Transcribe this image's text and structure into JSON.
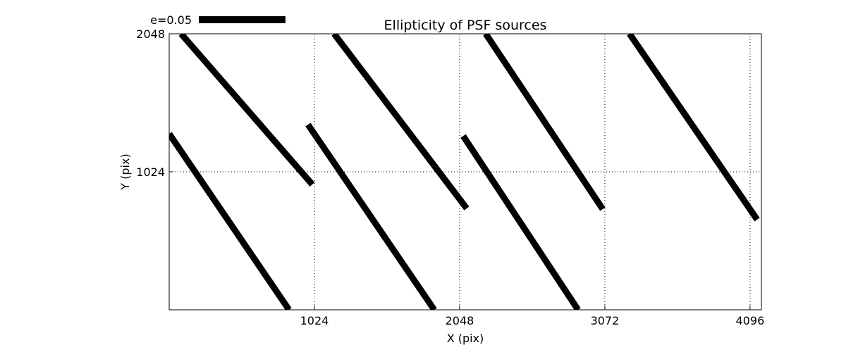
{
  "chart_data": {
    "type": "whisker",
    "title": "Ellipticity of PSF sources",
    "x_label": "X (pix)",
    "y_label": "Y (pix)",
    "xlim": [
      0,
      4176
    ],
    "ylim": [
      0,
      2048
    ],
    "xticks": [
      1024,
      2048,
      3072,
      4096
    ],
    "yticks": [
      1024,
      2048
    ],
    "grid": true,
    "color": "#000000",
    "key": {
      "label": "e=0.05",
      "length": 611
    },
    "segments": [
      {
        "x": [
          84,
          1009
        ],
        "y": [
          2048,
          930
        ]
      },
      {
        "x": [
          0,
          845
        ],
        "y": [
          1306,
          0
        ]
      },
      {
        "x": [
          1163,
          2098
        ],
        "y": [
          2048,
          752
        ]
      },
      {
        "x": [
          979,
          1869
        ],
        "y": [
          1374,
          0
        ]
      },
      {
        "x": [
          2232,
          3057
        ],
        "y": [
          2048,
          747
        ]
      },
      {
        "x": [
          2073,
          2883
        ],
        "y": [
          1290,
          0
        ]
      },
      {
        "x": [
          3246,
          4146
        ],
        "y": [
          2048,
          669
        ]
      }
    ]
  }
}
